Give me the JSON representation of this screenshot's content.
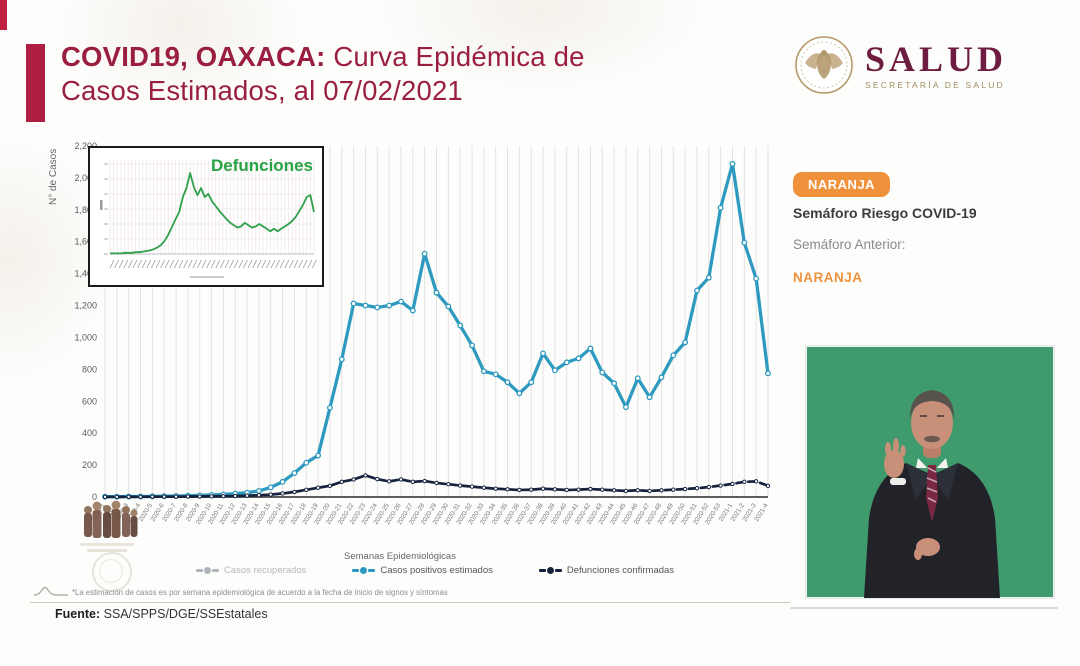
{
  "header": {
    "title_bold": "COVID19, OAXACA:",
    "title_rest": " Curva Epidémica de",
    "title_line2": "Casos Estimados, al 07/02/2021"
  },
  "logo": {
    "title": "SALUD",
    "subtitle": "SECRETARÍA DE SALUD"
  },
  "semaforo": {
    "badge": "NARANJA",
    "label": "Semáforo Riesgo COVID-19",
    "previous_label": "Semáforo Anterior:",
    "previous_value": "NARANJA",
    "color": "#F0913C"
  },
  "footer": {
    "note": "*La estimación de casos es por semana epidemiológica de acuerdo a la fecha de inicio de signos y síntomas",
    "source_label": "Fuente:",
    "source": "SSA/SPPS/DGE/SSEstatales"
  },
  "chart_data": [
    {
      "type": "line",
      "title": "",
      "xlabel": "Semanas Epidemiológicas",
      "ylabel": "N° de Casos",
      "ylim": [
        0,
        2200
      ],
      "ytick_step": 200,
      "grid": true,
      "legend_position": "bottom",
      "categories": [
        "2020-1",
        "2020-2",
        "2020-3",
        "2020-4",
        "2020-5",
        "2020-6",
        "2020-7",
        "2020-8",
        "2020-9",
        "2020-10",
        "2020-11",
        "2020-12",
        "2020-13",
        "2020-14",
        "2020-15",
        "2020-16",
        "2020-17",
        "2020-18",
        "2020-19",
        "2020-20",
        "2020-21",
        "2020-22",
        "2020-23",
        "2020-24",
        "2020-25",
        "2020-26",
        "2020-27",
        "2020-28",
        "2020-29",
        "2020-30",
        "2020-31",
        "2020-32",
        "2020-33",
        "2020-34",
        "2020-35",
        "2020-36",
        "2020-37",
        "2020-38",
        "2020-39",
        "2020-40",
        "2020-41",
        "2020-42",
        "2020-43",
        "2020-44",
        "2020-45",
        "2020-46",
        "2020-47",
        "2020-48",
        "2020-49",
        "2020-50",
        "2020-51",
        "2020-52",
        "2020-53",
        "2021-1",
        "2021-2",
        "2021-3",
        "2021-4"
      ],
      "series": [
        {
          "name": "Casos recuperados",
          "color": "#AEB4B9",
          "text_color": "#b4b8bc",
          "values": []
        },
        {
          "name": "Casos positivos estimados",
          "color": "#2E9ABF",
          "text_color": "#555555",
          "values": [
            2,
            2,
            3,
            3,
            4,
            5,
            6,
            8,
            10,
            13,
            16,
            21,
            27,
            38,
            60,
            95,
            150,
            215,
            260,
            560,
            863,
            1213,
            1200,
            1188,
            1200,
            1225,
            1169,
            1525,
            1281,
            1194,
            1075,
            950,
            788,
            769,
            719,
            650,
            719,
            900,
            794,
            844,
            869,
            931,
            781,
            713,
            563,
            744,
            625,
            750,
            888,
            969,
            1294,
            1375,
            1813,
            2088,
            1594,
            1369,
            775
          ]
        },
        {
          "name": "Defunciones confirmadas",
          "color": "#16233F",
          "text_color": "#555555",
          "dash": true,
          "values": [
            1,
            1,
            1,
            1,
            2,
            2,
            2,
            3,
            3,
            4,
            5,
            6,
            8,
            11,
            15,
            22,
            32,
            45,
            58,
            70,
            95,
            110,
            135,
            112,
            98,
            110,
            95,
            100,
            88,
            80,
            72,
            65,
            58,
            52,
            48,
            44,
            46,
            52,
            48,
            44,
            46,
            50,
            46,
            42,
            38,
            42,
            38,
            42,
            46,
            50,
            55,
            62,
            72,
            82,
            95,
            98,
            70
          ]
        }
      ]
    },
    {
      "type": "line",
      "title": "Defunciones",
      "color": "#2EA14C",
      "ylim": [
        0,
        150
      ],
      "grid": true,
      "categories": "same epidemiological weeks 2020-1 to 2021-4",
      "values": [
        1,
        1,
        1,
        1,
        2,
        2,
        2,
        3,
        3,
        4,
        5,
        6,
        8,
        11,
        15,
        22,
        32,
        45,
        58,
        70,
        95,
        110,
        135,
        112,
        98,
        110,
        95,
        100,
        88,
        80,
        72,
        65,
        58,
        52,
        48,
        44,
        46,
        52,
        48,
        44,
        46,
        50,
        46,
        42,
        38,
        42,
        38,
        42,
        46,
        50,
        55,
        62,
        72,
        82,
        95,
        98,
        70
      ]
    }
  ]
}
